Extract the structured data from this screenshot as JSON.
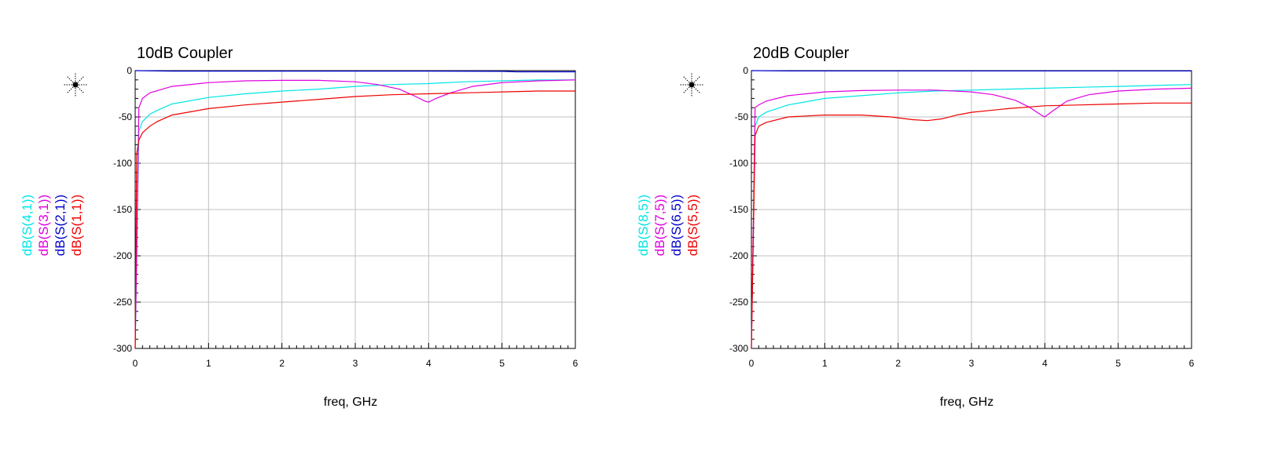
{
  "chart_data": [
    {
      "type": "line",
      "title": "10dB Coupler",
      "xlabel": "freq, GHz",
      "xlim": [
        0,
        6
      ],
      "ylim": [
        -300,
        0
      ],
      "xticks": [
        0,
        1,
        2,
        3,
        4,
        5,
        6
      ],
      "yticks": [
        0,
        -50,
        -100,
        -150,
        -200,
        -250,
        -300
      ],
      "xtick_labels": [
        "0",
        "1",
        "2",
        "3",
        "4",
        "5",
        "6"
      ],
      "ytick_labels": [
        "0",
        "-50",
        "-100",
        "-150",
        "-200",
        "-250",
        "-300"
      ],
      "grid": true,
      "series": [
        {
          "name": "dB(S(4,1))",
          "color": "#00e5e5",
          "x": [
            0,
            0.05,
            0.1,
            0.2,
            0.3,
            0.5,
            1,
            1.5,
            2,
            2.5,
            3,
            3.5,
            4,
            4.5,
            5,
            5.5,
            6
          ],
          "y": [
            -300,
            -65,
            -55,
            -47,
            -43,
            -36,
            -29,
            -25,
            -22,
            -20,
            -17,
            -15,
            -14,
            -12,
            -11,
            -10,
            -10
          ]
        },
        {
          "name": "dB(S(3,1))",
          "color": "#e000e0",
          "x": [
            0,
            0.05,
            0.1,
            0.2,
            0.5,
            1,
            1.5,
            2,
            2.5,
            3,
            3.3,
            3.6,
            3.8,
            3.95,
            4,
            4.1,
            4.3,
            4.6,
            5,
            5.5,
            6
          ],
          "y": [
            -300,
            -40,
            -30,
            -24,
            -17,
            -13,
            -11,
            -10.5,
            -10.5,
            -12,
            -15,
            -20,
            -27,
            -33,
            -34,
            -30,
            -24,
            -17,
            -13,
            -11,
            -10
          ]
        },
        {
          "name": "dB(S(2,1))",
          "color": "#0000cc",
          "x": [
            0,
            0.5,
            1,
            2,
            3,
            4,
            5,
            5.2,
            6
          ],
          "y": [
            0,
            -0.5,
            -0.5,
            -0.5,
            -0.5,
            -0.5,
            -0.8,
            -1.3,
            -1.3
          ]
        },
        {
          "name": "dB(S(1,1))",
          "color": "#ee0000",
          "x": [
            0,
            0.02,
            0.05,
            0.1,
            0.2,
            0.3,
            0.5,
            1,
            1.5,
            2,
            2.5,
            3,
            3.5,
            4,
            4.5,
            5,
            5.5,
            6
          ],
          "y": [
            -300,
            -90,
            -75,
            -67,
            -60,
            -55,
            -48,
            -41,
            -37,
            -34,
            -31,
            -28,
            -26,
            -25,
            -24,
            -23,
            -22,
            -22
          ]
        }
      ]
    },
    {
      "type": "line",
      "title": "20dB Coupler",
      "xlabel": "freq, GHz",
      "xlim": [
        0,
        6
      ],
      "ylim": [
        -300,
        0
      ],
      "xticks": [
        0,
        1,
        2,
        3,
        4,
        5,
        6
      ],
      "yticks": [
        0,
        -50,
        -100,
        -150,
        -200,
        -250,
        -300
      ],
      "xtick_labels": [
        "0",
        "1",
        "2",
        "3",
        "4",
        "5",
        "6"
      ],
      "ytick_labels": [
        "0",
        "-50",
        "-100",
        "-150",
        "-200",
        "-250",
        "-300"
      ],
      "grid": true,
      "series": [
        {
          "name": "dB(S(8,5))",
          "color": "#00e5e5",
          "x": [
            0,
            0.05,
            0.1,
            0.2,
            0.5,
            1,
            1.5,
            2,
            2.5,
            3,
            3.5,
            4,
            4.5,
            5,
            5.5,
            6
          ],
          "y": [
            -300,
            -60,
            -50,
            -45,
            -37,
            -30,
            -27,
            -24,
            -22,
            -21,
            -20,
            -19,
            -18,
            -17,
            -16,
            -15
          ]
        },
        {
          "name": "dB(S(7,5))",
          "color": "#e000e0",
          "x": [
            0,
            0.05,
            0.1,
            0.2,
            0.5,
            1,
            1.5,
            2,
            2.5,
            3,
            3.3,
            3.6,
            3.8,
            3.95,
            4,
            4.1,
            4.3,
            4.6,
            5,
            5.5,
            6
          ],
          "y": [
            -300,
            -40,
            -37,
            -33,
            -27,
            -23,
            -21.5,
            -21,
            -21,
            -23,
            -26,
            -32,
            -40,
            -48,
            -50,
            -44,
            -33,
            -26,
            -22,
            -20,
            -19
          ]
        },
        {
          "name": "dB(S(6,5))",
          "color": "#0000cc",
          "x": [
            0,
            0.5,
            1,
            2,
            3,
            4,
            5,
            6
          ],
          "y": [
            0,
            -0.3,
            -0.3,
            -0.3,
            -0.3,
            -0.3,
            -0.3,
            -0.3
          ]
        },
        {
          "name": "dB(S(5,5))",
          "color": "#ee0000",
          "x": [
            0,
            0.05,
            0.1,
            0.2,
            0.5,
            1,
            1.5,
            1.9,
            2.2,
            2.4,
            2.6,
            2.8,
            3,
            3.5,
            4,
            4.5,
            5,
            5.5,
            6
          ],
          "y": [
            -300,
            -70,
            -60,
            -56,
            -50,
            -48,
            -48,
            -50,
            -53,
            -54,
            -52,
            -48,
            -45,
            -41,
            -38,
            -37,
            -36,
            -35,
            -35
          ]
        }
      ]
    }
  ]
}
